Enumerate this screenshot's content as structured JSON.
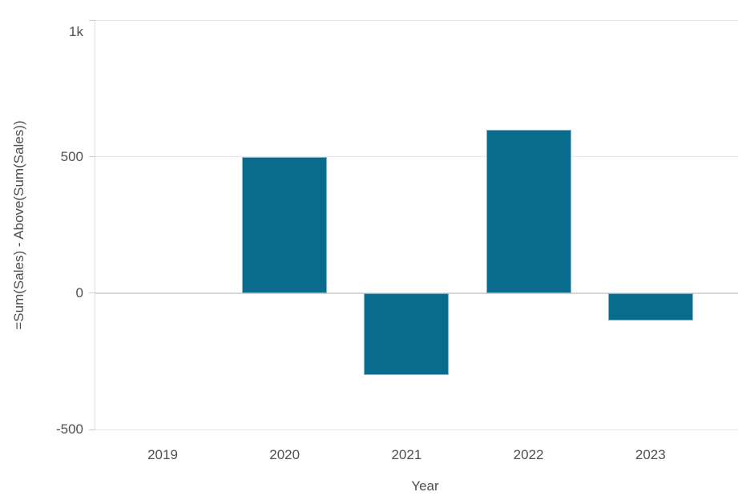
{
  "chart_data": {
    "type": "bar",
    "title": "",
    "categories": [
      "2019",
      "2020",
      "2021",
      "2022",
      "2023"
    ],
    "values": [
      0,
      500,
      -300,
      600,
      -100
    ],
    "xlabel": "Year",
    "ylabel": "=Sum(Sales) - Above(Sum(Sales))",
    "ylim": [
      -500,
      1000
    ],
    "yticks": [
      {
        "value": 1000,
        "label": "1k"
      },
      {
        "value": 500,
        "label": "500"
      },
      {
        "value": 0,
        "label": "0"
      },
      {
        "value": -500,
        "label": "-500"
      }
    ],
    "bar_color": "#0a6c8c",
    "grid": "horizontal",
    "legend": "none"
  }
}
